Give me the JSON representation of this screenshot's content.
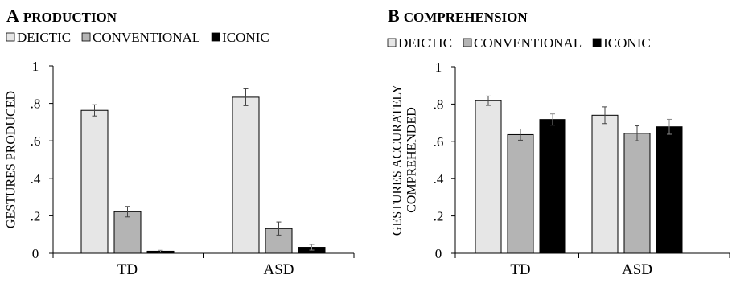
{
  "chart_data": [
    {
      "type": "bar",
      "panel_letter": "A",
      "title": "PRODUCTION",
      "ylabel": [
        "GESTURES PRODUCED"
      ],
      "xlabel": "",
      "categories": [
        "TD",
        "ASD"
      ],
      "ylim": [
        0,
        1
      ],
      "yticks": [
        0,
        0.2,
        0.4,
        0.6,
        0.8,
        1
      ],
      "ytick_labels": [
        "0",
        ".2",
        ".4",
        ".6",
        ".8",
        "1"
      ],
      "grid": false,
      "legend_position": "top",
      "series": [
        {
          "name": "DEICTIC",
          "color": "#e6e6e6",
          "values": [
            0.763,
            0.833
          ],
          "errors": [
            0.03,
            0.045
          ]
        },
        {
          "name": "CONVENTIONAL",
          "color": "#b4b4b4",
          "values": [
            0.222,
            0.132
          ],
          "errors": [
            0.028,
            0.035
          ]
        },
        {
          "name": "ICONIC",
          "color": "#000000",
          "values": [
            0.011,
            0.032
          ],
          "errors": [
            0.005,
            0.015
          ]
        }
      ]
    },
    {
      "type": "bar",
      "panel_letter": "B",
      "title": "COMPREHENSION",
      "ylabel": [
        "GESTURES ACCURATELY",
        "COMPREHENDED"
      ],
      "xlabel": "",
      "categories": [
        "TD",
        "ASD"
      ],
      "ylim": [
        0,
        1
      ],
      "yticks": [
        0,
        0.2,
        0.4,
        0.6,
        0.8,
        1
      ],
      "ytick_labels": [
        "0",
        ".2",
        ".4",
        ".6",
        ".8",
        "1"
      ],
      "grid": false,
      "legend_position": "top",
      "series": [
        {
          "name": "DEICTIC",
          "color": "#e6e6e6",
          "values": [
            0.818,
            0.74
          ],
          "errors": [
            0.025,
            0.045
          ]
        },
        {
          "name": "CONVENTIONAL",
          "color": "#b4b4b4",
          "values": [
            0.636,
            0.643
          ],
          "errors": [
            0.03,
            0.04
          ]
        },
        {
          "name": "ICONIC",
          "color": "#000000",
          "values": [
            0.717,
            0.678
          ],
          "errors": [
            0.03,
            0.04
          ]
        }
      ]
    }
  ]
}
